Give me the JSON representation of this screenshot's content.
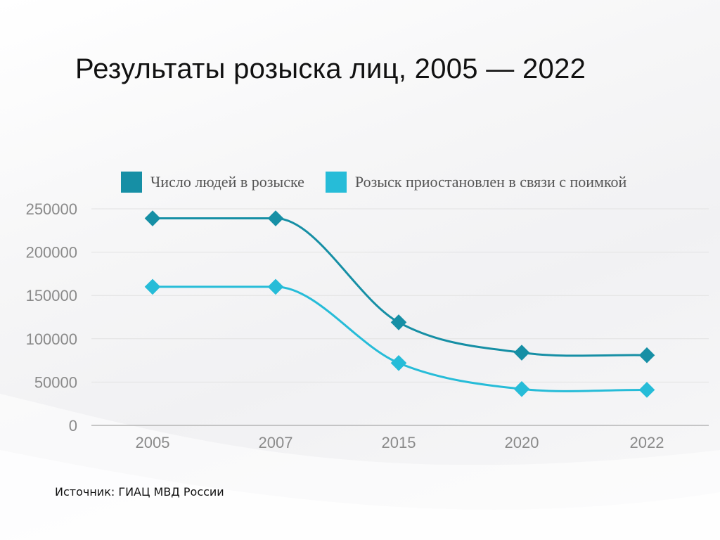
{
  "chart_data": {
    "type": "line",
    "title": "Результаты розыска лиц, 2005 — 2022",
    "categories": [
      "2005",
      "2007",
      "2015",
      "2020",
      "2022"
    ],
    "y_ticks": [
      "0",
      "50000",
      "100000",
      "150000",
      "200000",
      "250000"
    ],
    "ylim": [
      0,
      250000
    ],
    "grid": true,
    "legend_position": "top",
    "series": [
      {
        "name": "Число людей в розыске",
        "color": "#168fa5",
        "values": [
          239000,
          239000,
          119000,
          84000,
          81000
        ]
      },
      {
        "name": "Розыск приостановлен в связи с поимкой",
        "color": "#26bcd8",
        "values": [
          160000,
          160000,
          72000,
          42000,
          41000
        ]
      }
    ]
  },
  "source": "Источник: ГИАЦ МВД России"
}
